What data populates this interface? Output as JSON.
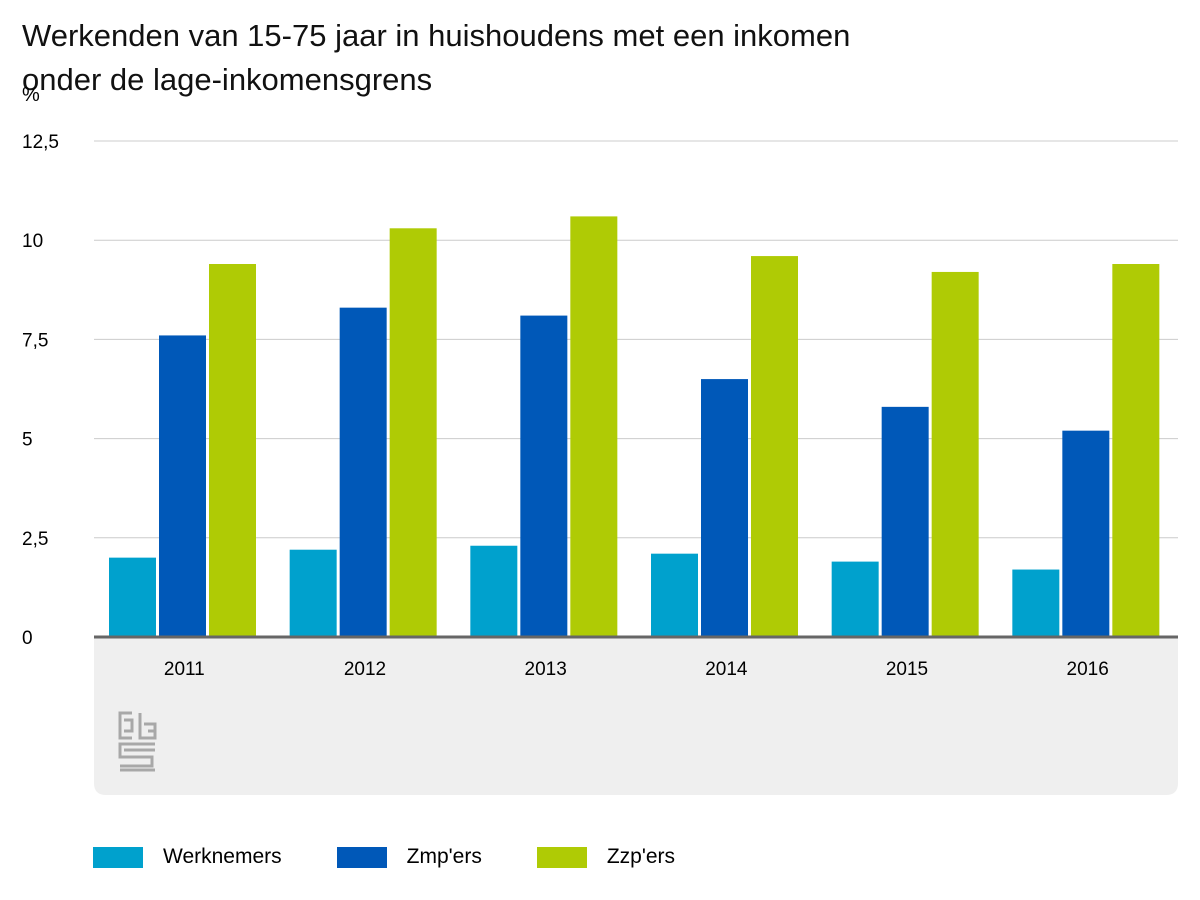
{
  "title_line1": "Werkenden van 15-75 jaar in huishoudens met een inkomen",
  "title_line2": "onder de lage-inkomensgrens",
  "logo_icon": "cbs-logo-icon",
  "colors": {
    "Werknemers": "#00a1cd",
    "Zmp'ers": "#0058b8",
    "Zzp'ers": "#afcb05",
    "grid": "#cccccc",
    "axis": "#666666",
    "panel": "#efefef"
  },
  "chart_data": {
    "type": "bar",
    "ylabel": "%",
    "ylim": [
      0,
      12.5
    ],
    "yticks": [
      "0",
      "2,5",
      "5",
      "7,5",
      "10",
      "12,5"
    ],
    "ytick_values": [
      0,
      2.5,
      5,
      7.5,
      10,
      12.5
    ],
    "grid": true,
    "legend_position": "bottom",
    "categories": [
      "2011",
      "2012",
      "2013",
      "2014",
      "2015",
      "2016"
    ],
    "series": [
      {
        "name": "Werknemers",
        "values": [
          2.0,
          2.2,
          2.3,
          2.1,
          1.9,
          1.7
        ]
      },
      {
        "name": "Zmp'ers",
        "values": [
          7.6,
          8.3,
          8.1,
          6.5,
          5.8,
          5.2
        ]
      },
      {
        "name": "Zzp'ers",
        "values": [
          9.4,
          10.3,
          10.6,
          9.6,
          9.2,
          9.4
        ]
      }
    ]
  }
}
